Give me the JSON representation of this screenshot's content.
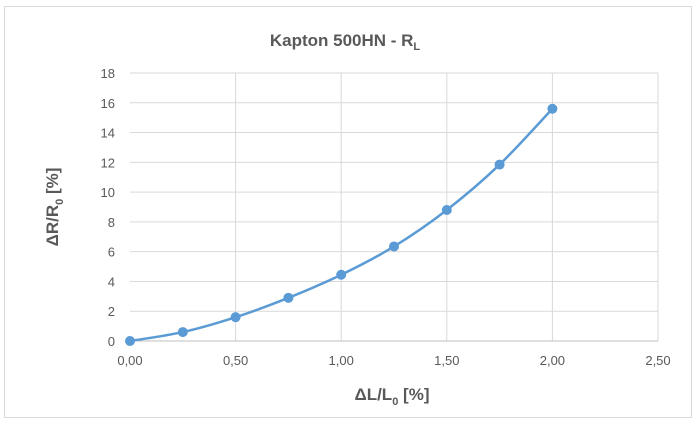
{
  "chart_data": {
    "type": "line",
    "title": {
      "main": "Kapton 500HN - R",
      "sub": "L"
    },
    "xlabel": {
      "pre": "ΔL/L",
      "sub": "0",
      "post": " [%]"
    },
    "ylabel": {
      "pre": "ΔR/R",
      "sub": "0",
      "post": " [%]"
    },
    "xlim": [
      0,
      2.5
    ],
    "ylim": [
      0,
      18
    ],
    "xticks": [
      0,
      0.5,
      1.0,
      1.5,
      2.0,
      2.5
    ],
    "xtick_labels": [
      "0,00",
      "0,50",
      "1,00",
      "1,50",
      "2,00",
      "2,50"
    ],
    "yticks": [
      0,
      2,
      4,
      6,
      8,
      10,
      12,
      14,
      16,
      18
    ],
    "ytick_labels": [
      "0",
      "2",
      "4",
      "6",
      "8",
      "10",
      "12",
      "14",
      "16",
      "18"
    ],
    "grid": true,
    "line_style": "smoothed line with markers",
    "series": [
      {
        "color": "#5b9bd5",
        "x": [
          0,
          0.25,
          0.5,
          0.75,
          1.0,
          1.25,
          1.5,
          1.75,
          2.0
        ],
        "y": [
          0.0,
          0.6,
          1.6,
          2.9,
          4.45,
          6.35,
          8.8,
          11.85,
          15.6
        ]
      }
    ]
  }
}
